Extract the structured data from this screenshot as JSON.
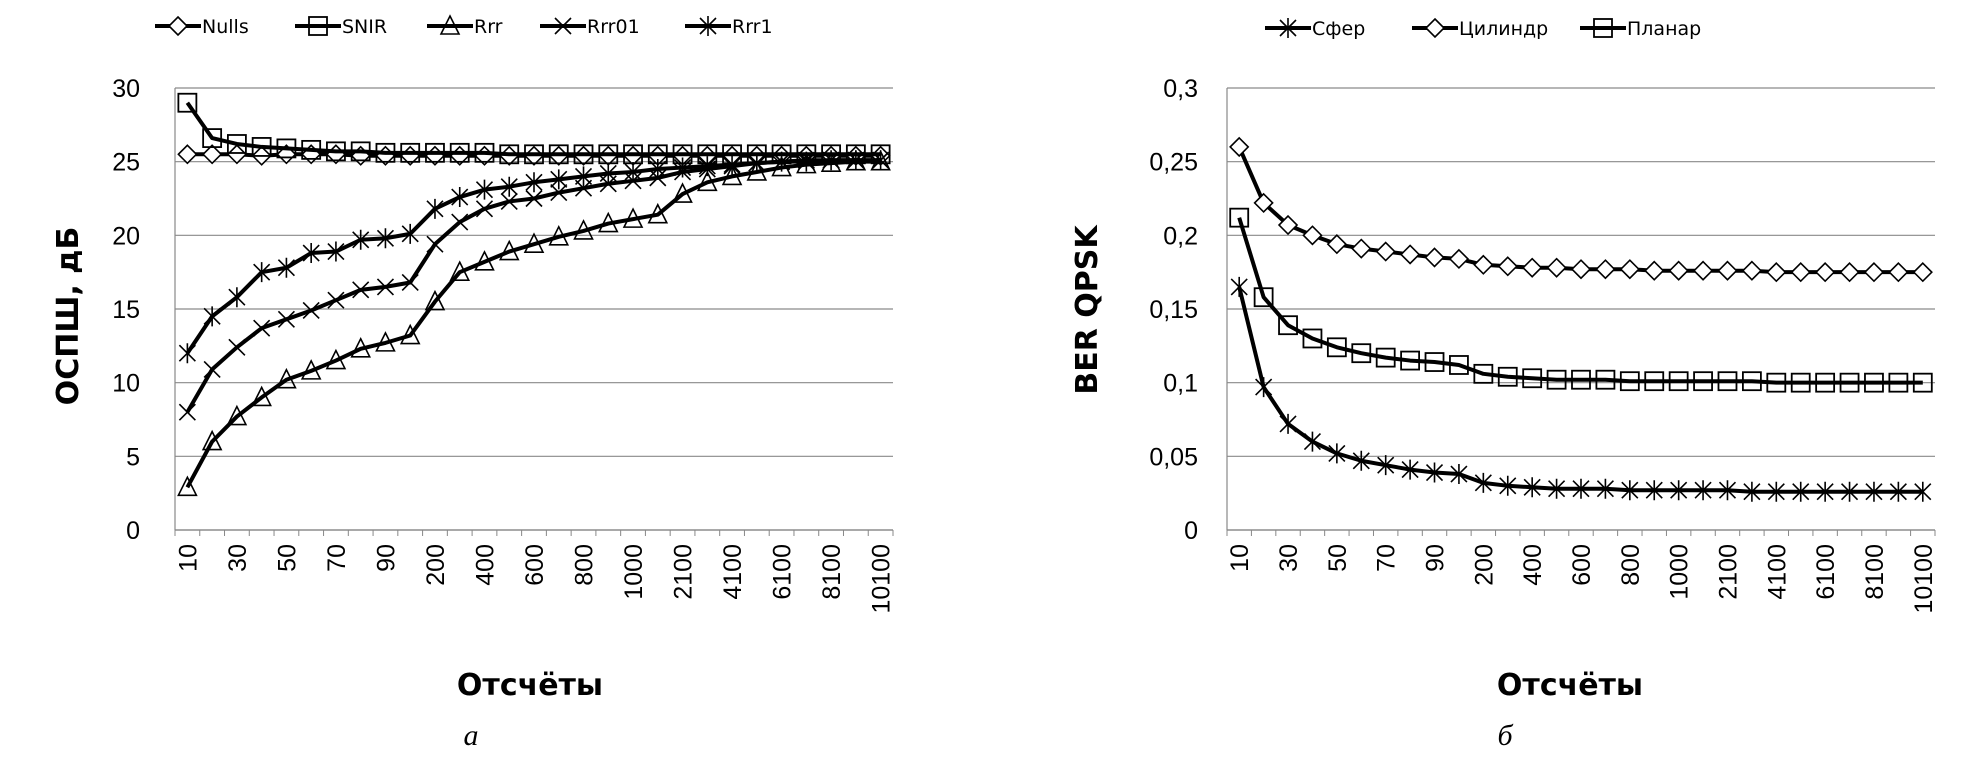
{
  "chart_data": [
    {
      "type": "line",
      "panel_label": "а",
      "xlabel": "Отсчёты",
      "ylabel": "ОСПШ, дБ",
      "ylim": [
        0,
        30
      ],
      "y_ticks": [
        "0",
        "5",
        "10",
        "15",
        "20",
        "25",
        "30"
      ],
      "legend_position": "top",
      "grid": true,
      "categories": [
        "10",
        "20",
        "30",
        "40",
        "50",
        "60",
        "70",
        "80",
        "90",
        "100",
        "200",
        "300",
        "400",
        "500",
        "600",
        "700",
        "800",
        "900",
        "1000",
        "1100",
        "2100",
        "3100",
        "4100",
        "5100",
        "6100",
        "7100",
        "8100",
        "9100",
        "10100"
      ],
      "tick_labels": [
        "10",
        "30",
        "50",
        "70",
        "90",
        "200",
        "400",
        "600",
        "800",
        "1000",
        "2100",
        "4100",
        "6100",
        "8100",
        "10100"
      ],
      "series": [
        {
          "name": "Nulls",
          "marker": "diamond",
          "values": [
            25.5,
            25.5,
            25.5,
            25.4,
            25.5,
            25.5,
            25.5,
            25.4,
            25.4,
            25.4,
            25.4,
            25.4,
            25.4,
            25.4,
            25.4,
            25.4,
            25.4,
            25.4,
            25.4,
            25.4,
            25.4,
            25.4,
            25.4,
            25.4,
            25.4,
            25.4,
            25.4,
            25.4,
            25.4
          ]
        },
        {
          "name": "SNIR",
          "marker": "square",
          "values": [
            29.0,
            26.6,
            26.2,
            26.0,
            25.9,
            25.8,
            25.7,
            25.7,
            25.6,
            25.6,
            25.6,
            25.6,
            25.6,
            25.5,
            25.5,
            25.5,
            25.5,
            25.5,
            25.5,
            25.5,
            25.5,
            25.5,
            25.5,
            25.5,
            25.5,
            25.5,
            25.5,
            25.5,
            25.5
          ]
        },
        {
          "name": "Rrr",
          "marker": "triangle",
          "values": [
            2.9,
            6.0,
            7.7,
            9.0,
            10.2,
            10.8,
            11.5,
            12.3,
            12.7,
            13.2,
            15.5,
            17.5,
            18.2,
            18.9,
            19.4,
            19.9,
            20.3,
            20.8,
            21.1,
            21.4,
            22.8,
            23.6,
            24.0,
            24.3,
            24.6,
            24.8,
            24.9,
            25.0,
            25.0
          ]
        },
        {
          "name": "Rrr01",
          "marker": "x",
          "values": [
            8.0,
            10.9,
            12.4,
            13.7,
            14.3,
            14.9,
            15.6,
            16.3,
            16.5,
            16.8,
            19.4,
            20.9,
            21.8,
            22.3,
            22.5,
            22.9,
            23.2,
            23.5,
            23.7,
            23.9,
            24.3,
            24.5,
            24.7,
            24.9,
            25.0,
            25.1,
            25.1,
            25.1,
            25.1
          ]
        },
        {
          "name": "Rrr1",
          "marker": "star",
          "values": [
            12.0,
            14.5,
            15.8,
            17.5,
            17.8,
            18.8,
            18.9,
            19.7,
            19.8,
            20.1,
            21.8,
            22.6,
            23.1,
            23.3,
            23.6,
            23.8,
            24.0,
            24.2,
            24.3,
            24.5,
            24.6,
            24.7,
            24.8,
            24.9,
            25.0,
            25.0,
            25.1,
            25.1,
            25.1
          ]
        }
      ]
    },
    {
      "type": "line",
      "panel_label": "б",
      "xlabel": "Отсчёты",
      "ylabel": "BER QPSK",
      "ylim": [
        0,
        0.3
      ],
      "y_ticks": [
        "0",
        "0,05",
        "0,1",
        "0,15",
        "0,2",
        "0,25",
        "0,3"
      ],
      "legend_position": "top",
      "grid": true,
      "categories": [
        "10",
        "20",
        "30",
        "40",
        "50",
        "60",
        "70",
        "80",
        "90",
        "100",
        "200",
        "300",
        "400",
        "500",
        "600",
        "700",
        "800",
        "900",
        "1000",
        "1100",
        "2100",
        "3100",
        "4100",
        "5100",
        "6100",
        "7100",
        "8100",
        "9100",
        "10100"
      ],
      "tick_labels": [
        "10",
        "30",
        "50",
        "70",
        "90",
        "200",
        "400",
        "600",
        "800",
        "1000",
        "2100",
        "4100",
        "6100",
        "8100",
        "10100"
      ],
      "series": [
        {
          "name": "Сфер",
          "marker": "star",
          "values": [
            0.165,
            0.097,
            0.072,
            0.06,
            0.052,
            0.047,
            0.044,
            0.041,
            0.039,
            0.038,
            0.032,
            0.03,
            0.029,
            0.028,
            0.028,
            0.028,
            0.027,
            0.027,
            0.027,
            0.027,
            0.027,
            0.026,
            0.026,
            0.026,
            0.026,
            0.026,
            0.026,
            0.026,
            0.026
          ]
        },
        {
          "name": "Цилиндр",
          "marker": "diamond",
          "values": [
            0.26,
            0.222,
            0.207,
            0.2,
            0.194,
            0.191,
            0.189,
            0.187,
            0.185,
            0.184,
            0.18,
            0.179,
            0.178,
            0.178,
            0.177,
            0.177,
            0.177,
            0.176,
            0.176,
            0.176,
            0.176,
            0.176,
            0.175,
            0.175,
            0.175,
            0.175,
            0.175,
            0.175,
            0.175
          ]
        },
        {
          "name": "Планар",
          "marker": "square",
          "values": [
            0.212,
            0.158,
            0.139,
            0.13,
            0.124,
            0.12,
            0.117,
            0.115,
            0.114,
            0.112,
            0.106,
            0.104,
            0.103,
            0.102,
            0.102,
            0.102,
            0.101,
            0.101,
            0.101,
            0.101,
            0.101,
            0.101,
            0.1,
            0.1,
            0.1,
            0.1,
            0.1,
            0.1,
            0.1
          ]
        }
      ]
    }
  ]
}
